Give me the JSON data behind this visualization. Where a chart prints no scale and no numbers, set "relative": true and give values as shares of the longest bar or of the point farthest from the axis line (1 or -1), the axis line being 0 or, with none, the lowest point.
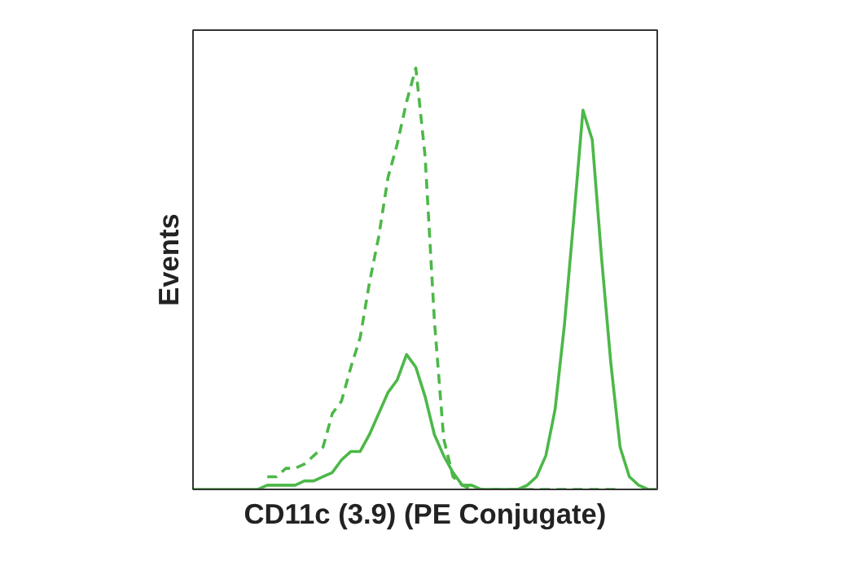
{
  "chart_data": {
    "type": "line",
    "xlabel": "CD11c (3.9) (PE Conjugate)",
    "ylabel": "Events",
    "relative": true,
    "categories": [
      null,
      null,
      null,
      null,
      null,
      null,
      null,
      null,
      null,
      null,
      null,
      null,
      null,
      null,
      null,
      null,
      null,
      null,
      null,
      null,
      null,
      null,
      null,
      null,
      null,
      null,
      null,
      null,
      null,
      null,
      null,
      null,
      null,
      null,
      null,
      null,
      null,
      null,
      null,
      null,
      null,
      null,
      null,
      null,
      null,
      null,
      null,
      null,
      null,
      null,
      null
    ],
    "series": [
      {
        "color": "#4cb848",
        "line_style": "dashed",
        "values": [
          null,
          null,
          null,
          null,
          null,
          null,
          null,
          null,
          0.03,
          0.03,
          0.05,
          0.05,
          0.06,
          0.08,
          0.1,
          0.18,
          0.21,
          0.29,
          0.36,
          0.49,
          0.6,
          0.74,
          0.82,
          0.92,
          1.0,
          0.79,
          0.4,
          0.12,
          0.03,
          0.01,
          0,
          0,
          0,
          0,
          0,
          0,
          0,
          0,
          0,
          0,
          0,
          0,
          0,
          0,
          0,
          0,
          0,
          null,
          null,
          null,
          null
        ]
      },
      {
        "color": "#4cb848",
        "line_style": "solid",
        "values": [
          0,
          0,
          0,
          0,
          0,
          0,
          0,
          0,
          0.01,
          0.01,
          0.01,
          0.01,
          0.02,
          0.02,
          0.03,
          0.04,
          0.07,
          0.09,
          0.09,
          0.13,
          0.18,
          0.23,
          0.26,
          0.32,
          0.29,
          0.22,
          0.13,
          0.08,
          0.04,
          0.01,
          0.01,
          0,
          0,
          0,
          0,
          0,
          0.01,
          0.03,
          0.08,
          0.19,
          0.39,
          0.64,
          0.9,
          0.83,
          0.55,
          0.3,
          0.1,
          0.03,
          0.01,
          0,
          0
        ]
      }
    ]
  }
}
